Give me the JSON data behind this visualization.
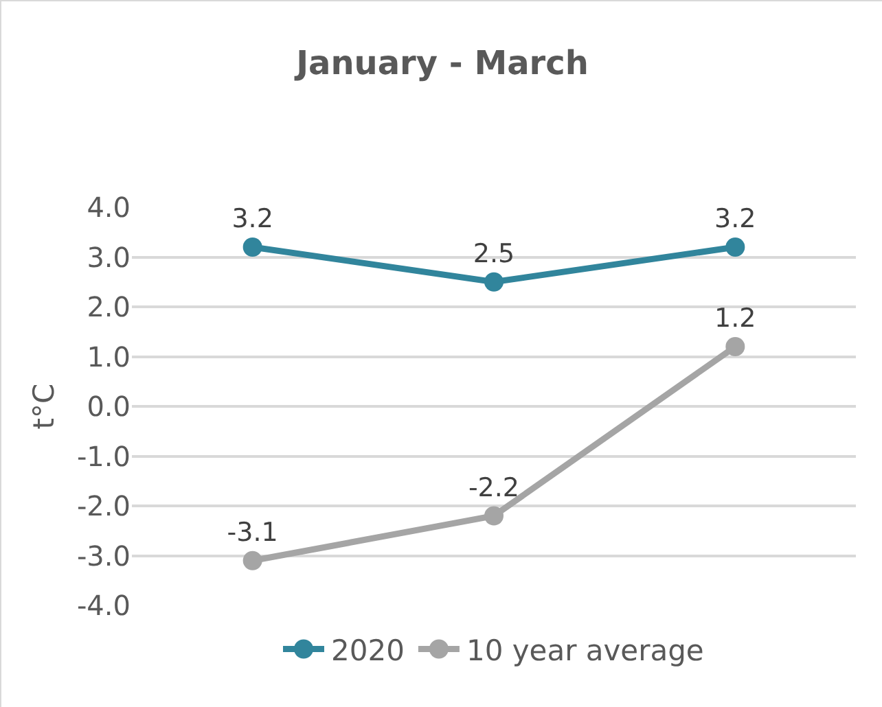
{
  "chart_data": {
    "type": "line",
    "title": "January - March",
    "ylabel": "t°C",
    "categories": [
      null,
      null,
      null
    ],
    "series": [
      {
        "name": "2020",
        "color": "#31859c",
        "values": [
          3.2,
          2.5,
          3.2
        ]
      },
      {
        "name": "10 year average",
        "color": "#a5a5a5",
        "values": [
          -3.1,
          -2.2,
          1.2
        ]
      }
    ],
    "ylim": [
      -4,
      4
    ],
    "yticks": [
      {
        "value": -4,
        "label": "-4.0"
      },
      {
        "value": -3,
        "label": "-3.0"
      },
      {
        "value": -2,
        "label": "-2.0"
      },
      {
        "value": -1,
        "label": "-1.0"
      },
      {
        "value": 0,
        "label": "0.0"
      },
      {
        "value": 1,
        "label": "1.0"
      },
      {
        "value": 2,
        "label": "2.0"
      },
      {
        "value": 3,
        "label": "3.0"
      },
      {
        "value": 4,
        "label": "4.0"
      }
    ],
    "grid": "y",
    "legend": "bottom",
    "marker": "circle",
    "line_style": "solid",
    "data_labels": true,
    "tick_labels": "y"
  }
}
